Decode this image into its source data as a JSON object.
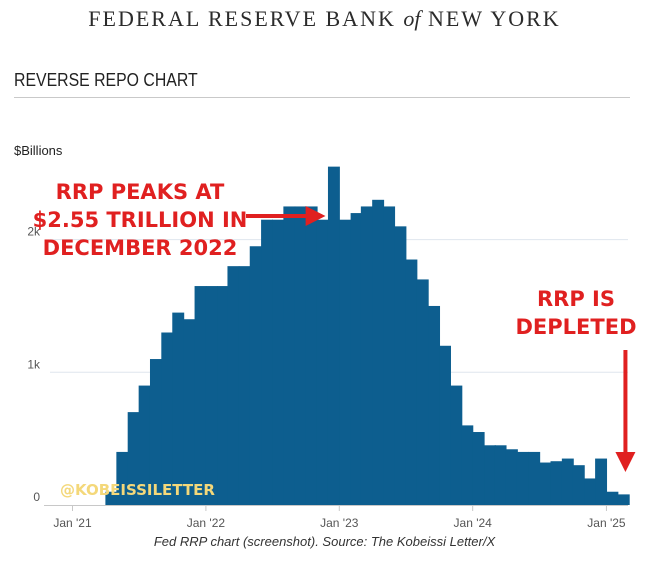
{
  "header": {
    "org_prefix": "FEDERAL RESERVE BANK",
    "org_of": "of",
    "org_suffix": "NEW YORK"
  },
  "chart_title": "REVERSE REPO CHART",
  "unit_label": "$Billions",
  "watermark": "@KOBEISSILETTER",
  "caption": "Fed RRP chart (screenshot). Source: The Kobeissi Letter/X",
  "colors": {
    "bar_fill": "#0d5e8f",
    "annotation_red": "#e02020",
    "axis_text": "#555555",
    "watermark": "#f4d87a"
  },
  "chart_data": {
    "type": "area",
    "ylim": [
      0,
      2600
    ],
    "y_ticks": [
      {
        "value": 0,
        "label": "0"
      },
      {
        "value": 1000,
        "label": "1k"
      },
      {
        "value": 2000,
        "label": "2k"
      }
    ],
    "x_ticks": [
      {
        "date": "2021-01",
        "label": "Jan '21"
      },
      {
        "date": "2022-01",
        "label": "Jan '22"
      },
      {
        "date": "2023-01",
        "label": "Jan '23"
      },
      {
        "date": "2024-01",
        "label": "Jan '24"
      },
      {
        "date": "2025-01",
        "label": "Jan '25"
      }
    ],
    "series": [
      {
        "x": [
          "2021-03",
          "2021-04",
          "2021-05",
          "2021-06",
          "2021-07",
          "2021-08",
          "2021-09",
          "2021-10",
          "2021-11",
          "2021-12",
          "2022-01",
          "2022-02",
          "2022-03",
          "2022-04",
          "2022-05",
          "2022-06",
          "2022-07",
          "2022-08",
          "2022-09",
          "2022-10",
          "2022-11",
          "2022-12",
          "2023-01",
          "2023-02",
          "2023-03",
          "2023-04",
          "2023-05",
          "2023-06",
          "2023-07",
          "2023-08",
          "2023-09",
          "2023-10",
          "2023-11",
          "2023-12",
          "2024-01",
          "2024-02",
          "2024-03",
          "2024-04",
          "2024-05",
          "2024-06",
          "2024-07",
          "2024-08",
          "2024-09",
          "2024-10",
          "2024-11",
          "2024-12",
          "2025-01",
          "2025-02"
        ],
        "values": [
          0,
          100,
          400,
          700,
          900,
          1100,
          1300,
          1450,
          1400,
          1650,
          1650,
          1650,
          1800,
          1800,
          1950,
          2150,
          2150,
          2250,
          2250,
          2250,
          2150,
          2550,
          2150,
          2200,
          2250,
          2300,
          2250,
          2100,
          1850,
          1700,
          1500,
          1200,
          900,
          600,
          550,
          450,
          450,
          420,
          400,
          400,
          320,
          330,
          350,
          300,
          200,
          350,
          100,
          80
        ]
      }
    ],
    "annotations": [
      {
        "lines": [
          "RRP PEAKS AT",
          "$2.55 TRILLION IN",
          "DECEMBER 2022"
        ],
        "target_date": "2022-12",
        "target_value": 2550
      },
      {
        "lines": [
          "RRP IS",
          "DEPLETED"
        ],
        "target_date": "2025-02",
        "target_value": 150
      }
    ]
  }
}
